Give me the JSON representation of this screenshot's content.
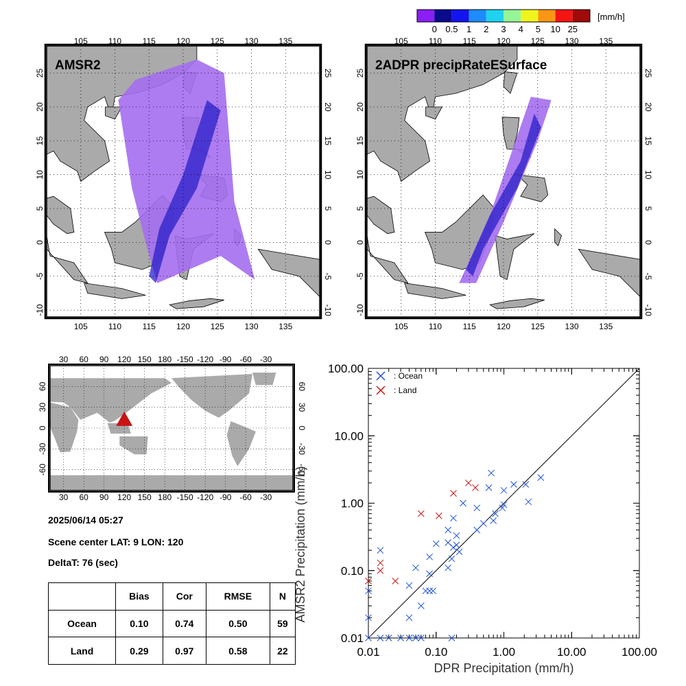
{
  "colorbar": {
    "unit": "[mm/h]",
    "labels": [
      "0",
      "0.5",
      "1",
      "2",
      "3",
      "4",
      "5",
      "10",
      "25"
    ],
    "colors": [
      "#8a1ef5",
      "#0a0a8c",
      "#1414f0",
      "#1e8cff",
      "#1ed2f0",
      "#96f596",
      "#f0f51e",
      "#fa9614",
      "#f51414",
      "#a00a0a"
    ]
  },
  "maps": [
    {
      "title": "AMSR2",
      "lon_ticks": [
        "105",
        "110",
        "115",
        "120",
        "125",
        "130",
        "135"
      ],
      "lat_ticks": [
        "25",
        "20",
        "15",
        "10",
        "5",
        "0",
        "-5",
        "-10"
      ]
    },
    {
      "title": "2ADPR precipRateESurface",
      "lon_ticks": [
        "105",
        "110",
        "115",
        "120",
        "125",
        "130",
        "135"
      ],
      "lat_ticks": [
        "25",
        "20",
        "15",
        "10",
        "5",
        "0",
        "-5",
        "-10"
      ]
    }
  ],
  "world_map": {
    "lon_ticks": [
      "30",
      "60",
      "90",
      "120",
      "150",
      "180",
      "-150",
      "-120",
      "-90",
      "-60",
      "-30"
    ],
    "lat_ticks": [
      "60",
      "30",
      "0",
      "-30",
      "-60"
    ],
    "marker_color": "#c81414"
  },
  "info": {
    "datetime": "2025/06/14 05:27",
    "scene_center": "Scene center LAT:  9   LON: 120",
    "deltat": "DeltaT:   76 (sec)"
  },
  "stats_table": {
    "headers": [
      "",
      "Bias",
      "Cor",
      "RMSE",
      "N"
    ],
    "rows": [
      [
        "Ocean",
        "0.10",
        "0.74",
        "0.50",
        "59"
      ],
      [
        "Land",
        "0.29",
        "0.97",
        "0.58",
        "22"
      ]
    ]
  },
  "chart_data": {
    "type": "scatter",
    "xlabel": "DPR Precipitation (mm/h)",
    "ylabel": "AMSR2 Precipitation (mm/h)",
    "x_scale": "log",
    "y_scale": "log",
    "xlim": [
      0.01,
      100
    ],
    "ylim": [
      0.01,
      100
    ],
    "tick_labels": [
      "0.01",
      "0.10",
      "1.00",
      "10.00",
      "100.00"
    ],
    "reference_line": "1:1",
    "legend_position": "top-left",
    "series": [
      {
        "name": ": Ocean",
        "color": "#1e50dc",
        "points": [
          [
            0.01,
            0.05
          ],
          [
            0.01,
            0.02
          ],
          [
            0.01,
            0.01
          ],
          [
            0.015,
            0.2
          ],
          [
            0.015,
            0.01
          ],
          [
            0.02,
            0.01
          ],
          [
            0.03,
            0.01
          ],
          [
            0.04,
            0.06
          ],
          [
            0.04,
            0.02
          ],
          [
            0.04,
            0.01
          ],
          [
            0.05,
            0.11
          ],
          [
            0.05,
            0.01
          ],
          [
            0.06,
            0.01
          ],
          [
            0.06,
            0.03
          ],
          [
            0.07,
            0.05
          ],
          [
            0.08,
            0.05
          ],
          [
            0.08,
            0.09
          ],
          [
            0.08,
            0.16
          ],
          [
            0.09,
            0.05
          ],
          [
            0.1,
            0.25
          ],
          [
            0.15,
            0.4
          ],
          [
            0.15,
            0.26
          ],
          [
            0.15,
            0.11
          ],
          [
            0.17,
            0.15
          ],
          [
            0.17,
            0.01
          ],
          [
            0.18,
            0.6
          ],
          [
            0.18,
            0.22
          ],
          [
            0.2,
            0.33
          ],
          [
            0.2,
            0.24
          ],
          [
            0.22,
            0.19
          ],
          [
            0.25,
            1.0
          ],
          [
            0.4,
            0.85
          ],
          [
            0.4,
            0.4
          ],
          [
            0.5,
            0.5
          ],
          [
            0.6,
            1.7
          ],
          [
            0.65,
            2.8
          ],
          [
            0.7,
            0.55
          ],
          [
            0.75,
            0.7
          ],
          [
            0.95,
            0.85
          ],
          [
            1.0,
            0.95
          ],
          [
            1.0,
            1.55
          ],
          [
            1.4,
            1.9
          ],
          [
            2.1,
            1.9
          ],
          [
            2.3,
            1.05
          ],
          [
            3.5,
            2.4
          ]
        ]
      },
      {
        "name": ": Land",
        "color": "#c81414",
        "points": [
          [
            0.01,
            0.07
          ],
          [
            0.015,
            0.13
          ],
          [
            0.015,
            0.1
          ],
          [
            0.025,
            0.07
          ],
          [
            0.06,
            0.7
          ],
          [
            0.11,
            0.65
          ],
          [
            0.18,
            1.4
          ],
          [
            0.3,
            2.0
          ],
          [
            0.38,
            1.7
          ]
        ]
      }
    ]
  }
}
